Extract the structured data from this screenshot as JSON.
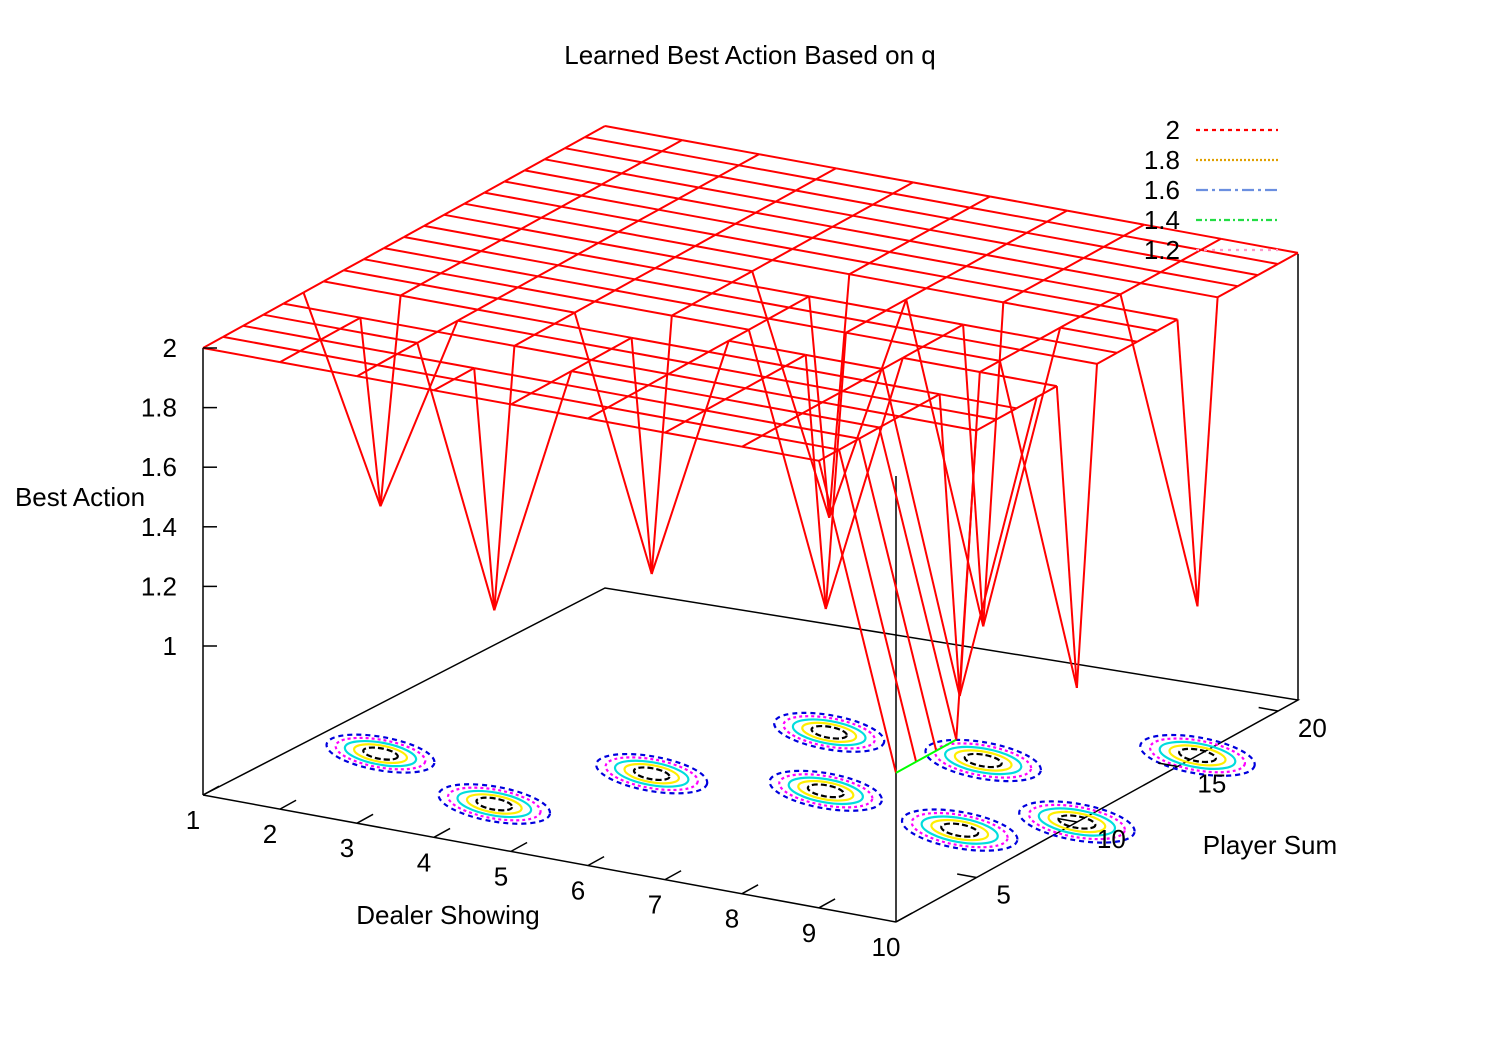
{
  "chart_data": {
    "type": "surface",
    "title": "Learned Best Action Based on q",
    "xlabel": "Dealer Showing",
    "ylabel": "Player Sum",
    "zlabel": "Best Action",
    "x_ticks": [
      "1",
      "2",
      "3",
      "4",
      "5",
      "6",
      "7",
      "8",
      "9",
      "10"
    ],
    "y_ticks": [
      "5",
      "10",
      "15",
      "20"
    ],
    "z_ticks": [
      "1",
      "1.2",
      "1.4",
      "1.6",
      "1.8",
      "2"
    ],
    "x_range": [
      1,
      10
    ],
    "y_range": [
      1,
      21
    ],
    "z_range": [
      0.5,
      2
    ],
    "contour_levels": [
      {
        "label": "2",
        "color": "#ff0000",
        "dash": "4,4"
      },
      {
        "label": "1.8",
        "color": "#e0a000",
        "dash": "2,2"
      },
      {
        "label": "1.6",
        "color": "#6b8fe0",
        "dash": "12,4,3,4"
      },
      {
        "label": "1.4",
        "color": "#22dd44",
        "dash": "6,3,2,3"
      },
      {
        "label": "1.2",
        "color": "#ff99cc",
        "dash": "3,5"
      }
    ],
    "surface_color_top": "#ff0000",
    "surface_color_bottom": "#00ff00",
    "grid": false,
    "legend_position": "top-right",
    "series": [
      {
        "x": 2,
        "y": 6,
        "z": 1.33
      },
      {
        "x": 4,
        "y": 4,
        "z": 1.15
      },
      {
        "x": 5,
        "y": 8,
        "z": 1.17
      },
      {
        "x": 6,
        "y": 13,
        "z": 1.22
      },
      {
        "x": 7,
        "y": 9,
        "z": 1.11
      },
      {
        "x": 8,
        "y": 13,
        "z": 0.95
      },
      {
        "x": 9,
        "y": 8,
        "z": 0.95
      },
      {
        "x": 10,
        "y": 10,
        "z": 0.95
      },
      {
        "x": 10,
        "y": 16,
        "z": 1.0
      }
    ]
  }
}
